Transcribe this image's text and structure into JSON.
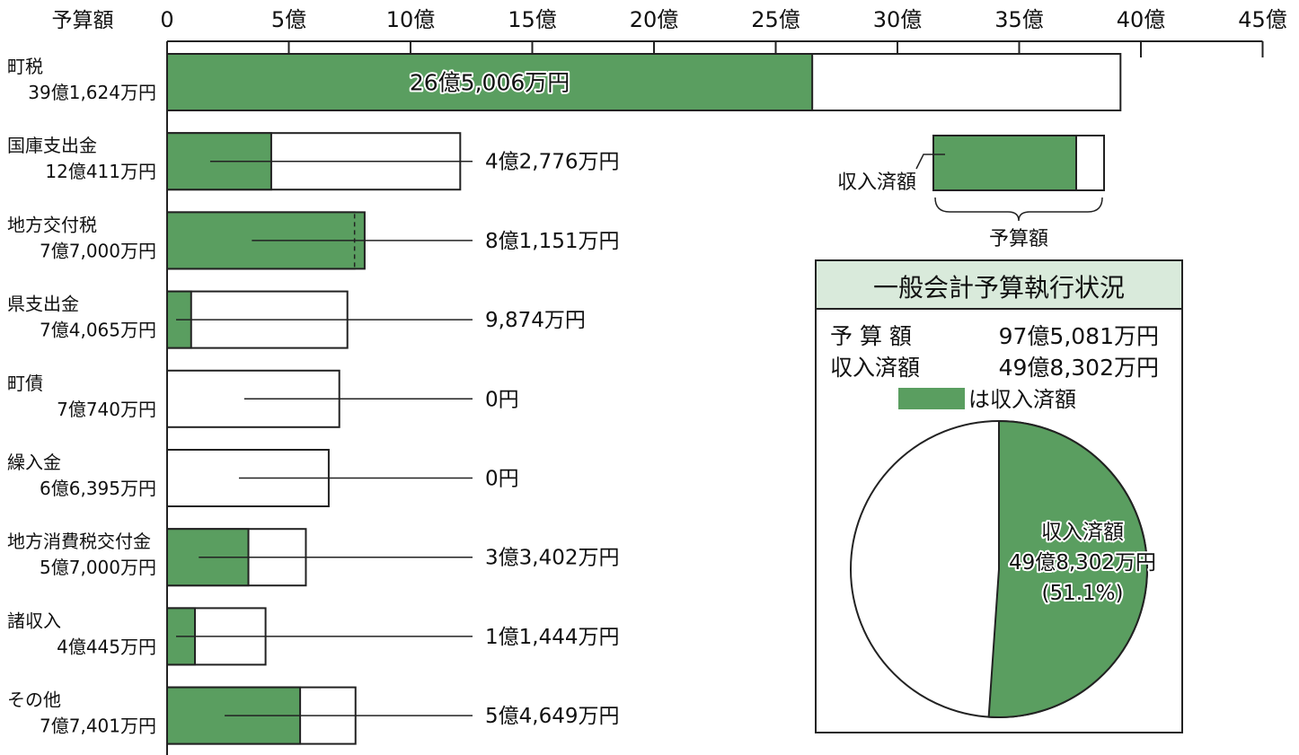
{
  "colors": {
    "collected": "#5a9e60",
    "budget": "#ffffff",
    "legend_title_bg": "#d9eadb",
    "line": "#222222"
  },
  "chart_data": [
    {
      "type": "bar",
      "ylabel": "予算額",
      "unit_suffix": "億",
      "xlim": [
        0,
        45
      ],
      "ticks": [
        0,
        5,
        10,
        15,
        20,
        25,
        30,
        35,
        40,
        45
      ],
      "tick_labels": [
        "0",
        "5億",
        "10億",
        "15億",
        "20億",
        "25億",
        "30億",
        "35億",
        "40億",
        "45億"
      ],
      "categories": [
        "町税",
        "国庫支出金",
        "地方交付税",
        "県支出金",
        "町債",
        "繰入金",
        "地方消費税交付金",
        "諸収入",
        "その他"
      ],
      "budget_labels": [
        "39億1,624万円",
        "12億411万円",
        "7億7,000万円",
        "7億4,065万円",
        "7億740万円",
        "6億6,395万円",
        "5億7,000万円",
        "4億445万円",
        "7億7,401万円"
      ],
      "collected_labels": [
        "26億5,006万円",
        "4億2,776万円",
        "8億1,151万円",
        "9,874万円",
        "0円",
        "0円",
        "3億3,402万円",
        "1億1,444万円",
        "5億4,649万円"
      ],
      "series": [
        {
          "name": "予算額",
          "values": [
            39.1624,
            12.0411,
            7.7,
            7.4065,
            7.074,
            6.6395,
            5.7,
            4.0445,
            7.7401
          ]
        },
        {
          "name": "収入済額",
          "values": [
            26.5006,
            4.2776,
            8.1151,
            0.9874,
            0,
            0,
            3.3402,
            1.1444,
            5.4649
          ]
        }
      ],
      "legend": {
        "collected_label": "収入済額",
        "budget_label": "予算額"
      }
    },
    {
      "type": "pie",
      "title": "一般会計予算執行状況",
      "summary": {
        "budget_label": "予 算 額",
        "budget_value": "97億5,081万円",
        "collected_label": "収入済額",
        "collected_value": "49億8,302万円",
        "legend_text": "は収入済額"
      },
      "slices": [
        {
          "name": "収入済額",
          "value": 51.1,
          "amount": "49億8,302万円",
          "percent": "(51.1%)"
        },
        {
          "value": 48.9
        }
      ]
    }
  ]
}
